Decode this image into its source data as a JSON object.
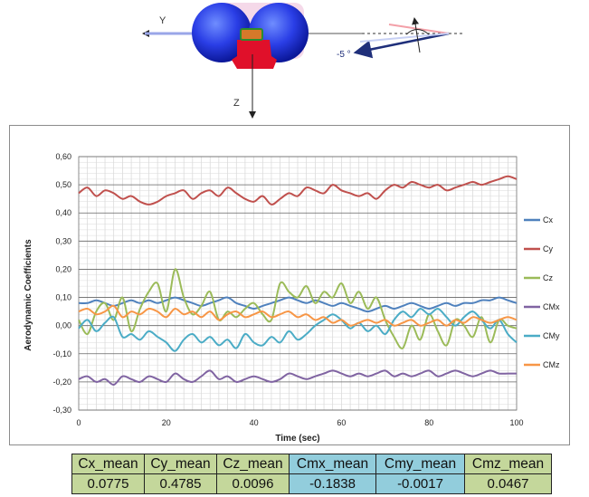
{
  "diagram": {
    "y_axis_label": "Y",
    "z_axis_label": "Z",
    "angle_label": "-5 °"
  },
  "chart_data": {
    "type": "line",
    "title": "",
    "xlabel": "Time (sec)",
    "ylabel": "Aerodynamic Coefficients",
    "xlim": [
      0,
      100
    ],
    "ylim": [
      -0.3,
      0.6
    ],
    "x_ticks": [
      "0",
      "20",
      "40",
      "60",
      "80",
      "100"
    ],
    "y_ticks": [
      "-0,30",
      "-0,20",
      "-0,10",
      "0,00",
      "0,10",
      "0,20",
      "0,30",
      "0,40",
      "0,50",
      "0,60"
    ],
    "grid": true,
    "legend_position": "right",
    "x": [
      0,
      2,
      4,
      6,
      8,
      10,
      12,
      14,
      16,
      18,
      20,
      22,
      24,
      26,
      28,
      30,
      32,
      34,
      36,
      38,
      40,
      42,
      44,
      46,
      48,
      50,
      52,
      54,
      56,
      58,
      60,
      62,
      64,
      66,
      68,
      70,
      72,
      74,
      76,
      78,
      80,
      82,
      84,
      86,
      88,
      90,
      92,
      94,
      96,
      98,
      100
    ],
    "series": [
      {
        "name": "Cx",
        "color": "#4f81bd",
        "values": [
          0.08,
          0.08,
          0.09,
          0.08,
          0.07,
          0.08,
          0.09,
          0.08,
          0.09,
          0.08,
          0.09,
          0.1,
          0.09,
          0.08,
          0.07,
          0.08,
          0.09,
          0.1,
          0.08,
          0.07,
          0.06,
          0.07,
          0.08,
          0.09,
          0.1,
          0.09,
          0.08,
          0.09,
          0.08,
          0.07,
          0.08,
          0.07,
          0.06,
          0.05,
          0.06,
          0.07,
          0.06,
          0.07,
          0.08,
          0.07,
          0.06,
          0.07,
          0.08,
          0.07,
          0.08,
          0.08,
          0.09,
          0.09,
          0.1,
          0.09,
          0.08
        ]
      },
      {
        "name": "Cy",
        "color": "#c0504d",
        "values": [
          0.47,
          0.49,
          0.46,
          0.48,
          0.47,
          0.45,
          0.46,
          0.44,
          0.43,
          0.44,
          0.46,
          0.47,
          0.48,
          0.45,
          0.47,
          0.48,
          0.46,
          0.49,
          0.47,
          0.45,
          0.44,
          0.46,
          0.43,
          0.45,
          0.47,
          0.46,
          0.49,
          0.48,
          0.47,
          0.5,
          0.48,
          0.47,
          0.46,
          0.47,
          0.45,
          0.48,
          0.5,
          0.49,
          0.51,
          0.5,
          0.49,
          0.5,
          0.48,
          0.49,
          0.5,
          0.51,
          0.5,
          0.51,
          0.52,
          0.53,
          0.52
        ]
      },
      {
        "name": "Cz",
        "color": "#9bbb59",
        "values": [
          0.02,
          -0.03,
          0.05,
          0.08,
          0.02,
          0.1,
          -0.02,
          0.06,
          0.12,
          0.15,
          0.05,
          0.2,
          0.1,
          0.04,
          0.07,
          0.12,
          0.02,
          0.05,
          0.03,
          0.06,
          0.08,
          0.04,
          0.02,
          0.15,
          0.12,
          0.1,
          0.14,
          0.08,
          0.12,
          0.1,
          0.15,
          0.08,
          0.12,
          0.06,
          0.1,
          0.02,
          -0.04,
          -0.08,
          0.0,
          -0.05,
          0.04,
          -0.02,
          -0.07,
          0.02,
          0.0,
          -0.04,
          0.03,
          -0.06,
          0.02,
          0.0,
          -0.01
        ]
      },
      {
        "name": "CMx",
        "color": "#8064a2",
        "values": [
          -0.19,
          -0.18,
          -0.2,
          -0.19,
          -0.21,
          -0.18,
          -0.19,
          -0.2,
          -0.18,
          -0.19,
          -0.2,
          -0.17,
          -0.19,
          -0.2,
          -0.18,
          -0.16,
          -0.19,
          -0.18,
          -0.2,
          -0.19,
          -0.18,
          -0.19,
          -0.2,
          -0.19,
          -0.17,
          -0.18,
          -0.19,
          -0.18,
          -0.17,
          -0.16,
          -0.17,
          -0.18,
          -0.17,
          -0.18,
          -0.17,
          -0.16,
          -0.18,
          -0.17,
          -0.18,
          -0.17,
          -0.16,
          -0.18,
          -0.17,
          -0.16,
          -0.17,
          -0.18,
          -0.17,
          -0.16,
          -0.17,
          -0.17,
          -0.17
        ]
      },
      {
        "name": "CMy",
        "color": "#4bacc6",
        "values": [
          -0.01,
          0.02,
          -0.02,
          0.01,
          0.03,
          -0.04,
          -0.03,
          -0.05,
          -0.02,
          -0.04,
          -0.06,
          -0.09,
          -0.05,
          -0.03,
          -0.06,
          -0.04,
          -0.07,
          -0.05,
          -0.08,
          -0.03,
          -0.06,
          -0.07,
          -0.04,
          -0.06,
          -0.02,
          -0.05,
          -0.03,
          0.0,
          0.02,
          0.04,
          0.02,
          -0.01,
          0.01,
          -0.02,
          0.0,
          -0.03,
          0.02,
          0.05,
          0.03,
          0.06,
          0.04,
          0.06,
          0.03,
          0.0,
          0.03,
          0.05,
          0.02,
          -0.01,
          0.02,
          -0.03,
          -0.06
        ]
      },
      {
        "name": "CMz",
        "color": "#f79646",
        "values": [
          0.05,
          0.06,
          0.04,
          0.05,
          0.07,
          0.03,
          0.05,
          0.04,
          0.06,
          0.05,
          0.03,
          0.06,
          0.04,
          0.05,
          0.03,
          0.05,
          0.02,
          0.04,
          0.05,
          0.03,
          0.04,
          0.05,
          0.03,
          0.04,
          0.05,
          0.03,
          0.04,
          0.02,
          0.03,
          0.01,
          0.02,
          0.0,
          0.01,
          0.02,
          0.01,
          0.02,
          0.0,
          0.01,
          0.02,
          0.0,
          0.01,
          0.02,
          0.0,
          0.02,
          0.01,
          0.03,
          0.02,
          0.01,
          0.02,
          0.03,
          0.02
        ]
      }
    ]
  },
  "stats_table": {
    "headers": [
      "Cx_mean",
      "Cy_mean",
      "Cz_mean",
      "Cmx_mean",
      "Cmy_mean",
      "Cmz_mean"
    ],
    "values": [
      "0.0775",
      "0.4785",
      "0.0096",
      "-0.1838",
      "-0.0017",
      "0.0467"
    ],
    "colors": {
      "green": "#c4d79b",
      "blue": "#92cddc"
    }
  }
}
